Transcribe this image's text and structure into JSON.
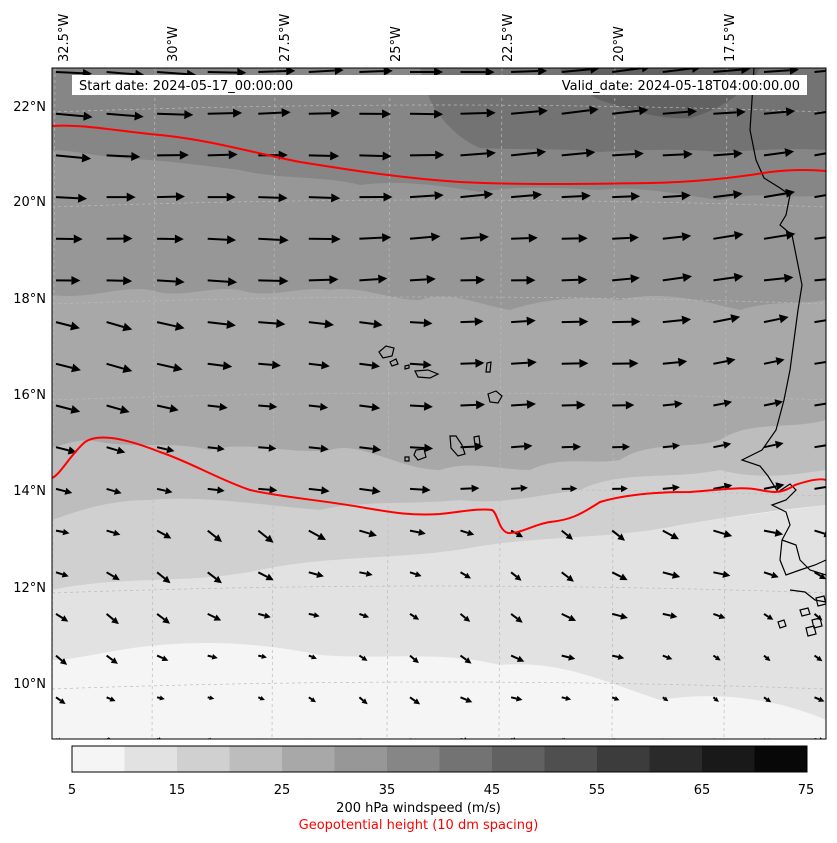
{
  "header": {
    "start_date": "Start date: 2024-05-17_00:00:00",
    "valid_date": "Valid_date: 2024-05-18T04:00:00.00"
  },
  "axes": {
    "longitude_labels": [
      "32.5°W",
      "30°W",
      "27.5°W",
      "25°W",
      "22.5°W",
      "20°W",
      "17.5°W"
    ],
    "latitude_labels": [
      "22°N",
      "20°N",
      "18°N",
      "16°N",
      "14°N",
      "12°N",
      "10°N"
    ]
  },
  "colorbar": {
    "tick_labels": [
      "5",
      "15",
      "25",
      "35",
      "45",
      "55",
      "65",
      "75"
    ],
    "levels": [
      5,
      10,
      15,
      20,
      25,
      30,
      35,
      40,
      45,
      50,
      55,
      60,
      65,
      70,
      75
    ],
    "colors": [
      "#f5f5f5",
      "#e2e2e2",
      "#d0d0d0",
      "#bdbdbd",
      "#a8a8a8",
      "#979797",
      "#868686",
      "#737373",
      "#616161",
      "#4f4f4f",
      "#3c3c3c",
      "#2a2a2a",
      "#191919",
      "#080808"
    ],
    "title": "200 hPa windspeed (m/s)",
    "subtitle": "Geopotential height (10 dm spacing)"
  },
  "colors": {
    "contour": "#ff0000",
    "coastline": "#000000",
    "arrow": "#000000",
    "gridline": "#bbbbbb"
  }
}
